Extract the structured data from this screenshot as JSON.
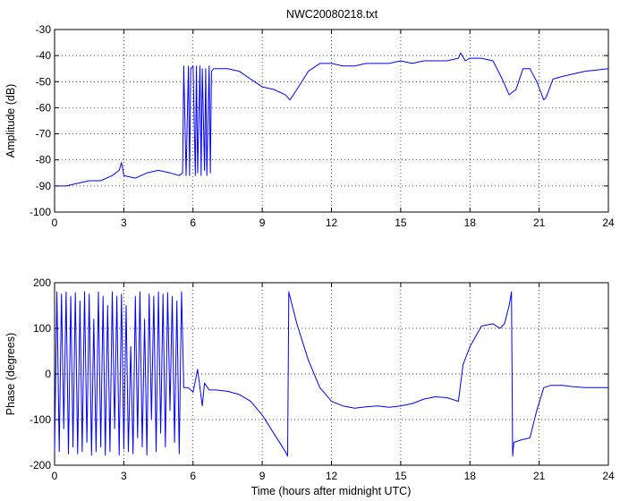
{
  "figure_title": "NWC20080218.txt",
  "chart_data": [
    {
      "type": "line",
      "title": "NWC20080218.txt",
      "xlabel": "",
      "ylabel": "Amplitude (dB)",
      "xlim": [
        0,
        24
      ],
      "ylim": [
        -100,
        -30
      ],
      "x_ticks": [
        0,
        3,
        6,
        9,
        12,
        15,
        18,
        21,
        24
      ],
      "y_ticks": [
        -30,
        -40,
        -50,
        -60,
        -70,
        -80,
        -90,
        -100
      ],
      "grid": true,
      "line_color": "#0000ff",
      "series": [
        {
          "x": [
            0,
            0.5,
            1,
            1.5,
            2,
            2.5,
            2.8,
            2.9,
            3.0,
            3.5,
            4,
            4.5,
            5,
            5.4,
            5.55,
            5.6,
            5.7,
            5.8,
            5.85,
            5.9,
            6.0,
            6.1,
            6.15,
            6.2,
            6.3,
            6.35,
            6.4,
            6.5,
            6.55,
            6.6,
            6.7,
            6.75,
            6.8,
            6.9,
            7.0,
            7.5,
            8,
            8.5,
            9,
            9.5,
            10,
            10.2,
            10.5,
            11,
            11.5,
            12,
            12.5,
            13,
            13.5,
            14,
            14.5,
            15,
            15.5,
            16,
            16.5,
            17,
            17.5,
            17.6,
            17.8,
            18,
            18.5,
            19,
            19.4,
            19.7,
            20,
            20.3,
            20.6,
            20.9,
            21.2,
            21.3,
            21.6,
            22,
            22.5,
            23,
            23.5,
            24
          ],
          "y": [
            -90,
            -90,
            -89,
            -88,
            -88,
            -86,
            -84,
            -81,
            -86,
            -87,
            -85,
            -84,
            -85,
            -86,
            -85,
            -44,
            -86,
            -44,
            -86,
            -45,
            -44,
            -86,
            -44,
            -85,
            -44,
            -86,
            -45,
            -84,
            -45,
            -86,
            -44,
            -85,
            -46,
            -45,
            -45,
            -45,
            -46,
            -49,
            -52,
            -53,
            -55,
            -57,
            -53,
            -46,
            -43,
            -43,
            -44,
            -44,
            -43,
            -43,
            -43,
            -42,
            -43,
            -42,
            -42,
            -42,
            -41,
            -39,
            -42,
            -41,
            -41,
            -42,
            -49,
            -55,
            -53,
            -45,
            -45,
            -50,
            -57,
            -56,
            -49,
            -48,
            -47,
            -46,
            -45.5,
            -45
          ]
        }
      ]
    },
    {
      "type": "line",
      "title": "",
      "xlabel": "Time (hours after midnight UTC)",
      "ylabel": "Phase (degrees)",
      "xlim": [
        0,
        24
      ],
      "ylim": [
        -200,
        200
      ],
      "x_ticks": [
        0,
        3,
        6,
        9,
        12,
        15,
        18,
        21,
        24
      ],
      "y_ticks": [
        200,
        100,
        0,
        -100,
        -200
      ],
      "grid": true,
      "line_color": "#0000ff",
      "series": [
        {
          "x": [
            0,
            0.1,
            0.2,
            0.3,
            0.4,
            0.5,
            0.6,
            0.7,
            0.8,
            0.9,
            1.0,
            1.1,
            1.2,
            1.3,
            1.4,
            1.5,
            1.6,
            1.7,
            1.8,
            1.9,
            2.0,
            2.1,
            2.2,
            2.3,
            2.4,
            2.5,
            2.6,
            2.7,
            2.8,
            2.9,
            3.0,
            3.1,
            3.2,
            3.3,
            3.4,
            3.5,
            3.6,
            3.7,
            3.8,
            3.9,
            4.0,
            4.1,
            4.2,
            4.3,
            4.4,
            4.5,
            4.6,
            4.7,
            4.8,
            4.9,
            5.0,
            5.1,
            5.2,
            5.3,
            5.4,
            5.5,
            5.6,
            5.8,
            6.0,
            6.2,
            6.4,
            6.5,
            6.7,
            7.0,
            7.5,
            8,
            8.5,
            9,
            9.5,
            10.0,
            10.1,
            10.15,
            10.5,
            11,
            11.5,
            12,
            12.5,
            13,
            13.5,
            14,
            14.5,
            15,
            15.5,
            16,
            16.5,
            17,
            17.5,
            17.7,
            18,
            18.5,
            19,
            19.3,
            19.5,
            19.7,
            19.8,
            19.85,
            19.9,
            20.2,
            20.6,
            20.9,
            21.2,
            21.5,
            22,
            22.5,
            23,
            23.5,
            24
          ],
          "y": [
            -170,
            180,
            -170,
            175,
            -120,
            180,
            -175,
            170,
            -160,
            178,
            -175,
            160,
            -170,
            180,
            -150,
            175,
            -178,
            120,
            -170,
            180,
            -160,
            170,
            -178,
            150,
            -170,
            180,
            -120,
            170,
            -178,
            175,
            -165,
            150,
            -170,
            60,
            -175,
            170,
            -140,
            180,
            -160,
            120,
            -178,
            175,
            -100,
            170,
            -170,
            180,
            -130,
            175,
            -160,
            178,
            -80,
            170,
            -150,
            160,
            -175,
            180,
            -30,
            -30,
            -40,
            10,
            -70,
            -20,
            -35,
            -35,
            -38,
            -45,
            -60,
            -90,
            -130,
            -170,
            -180,
            180,
            110,
            30,
            -30,
            -60,
            -70,
            -75,
            -72,
            -70,
            -73,
            -70,
            -65,
            -55,
            -50,
            -52,
            -60,
            20,
            60,
            105,
            110,
            100,
            110,
            150,
            180,
            -180,
            -150,
            -145,
            -140,
            -80,
            -30,
            -25,
            -25,
            -28,
            -30,
            -30,
            -30
          ]
        }
      ]
    }
  ]
}
